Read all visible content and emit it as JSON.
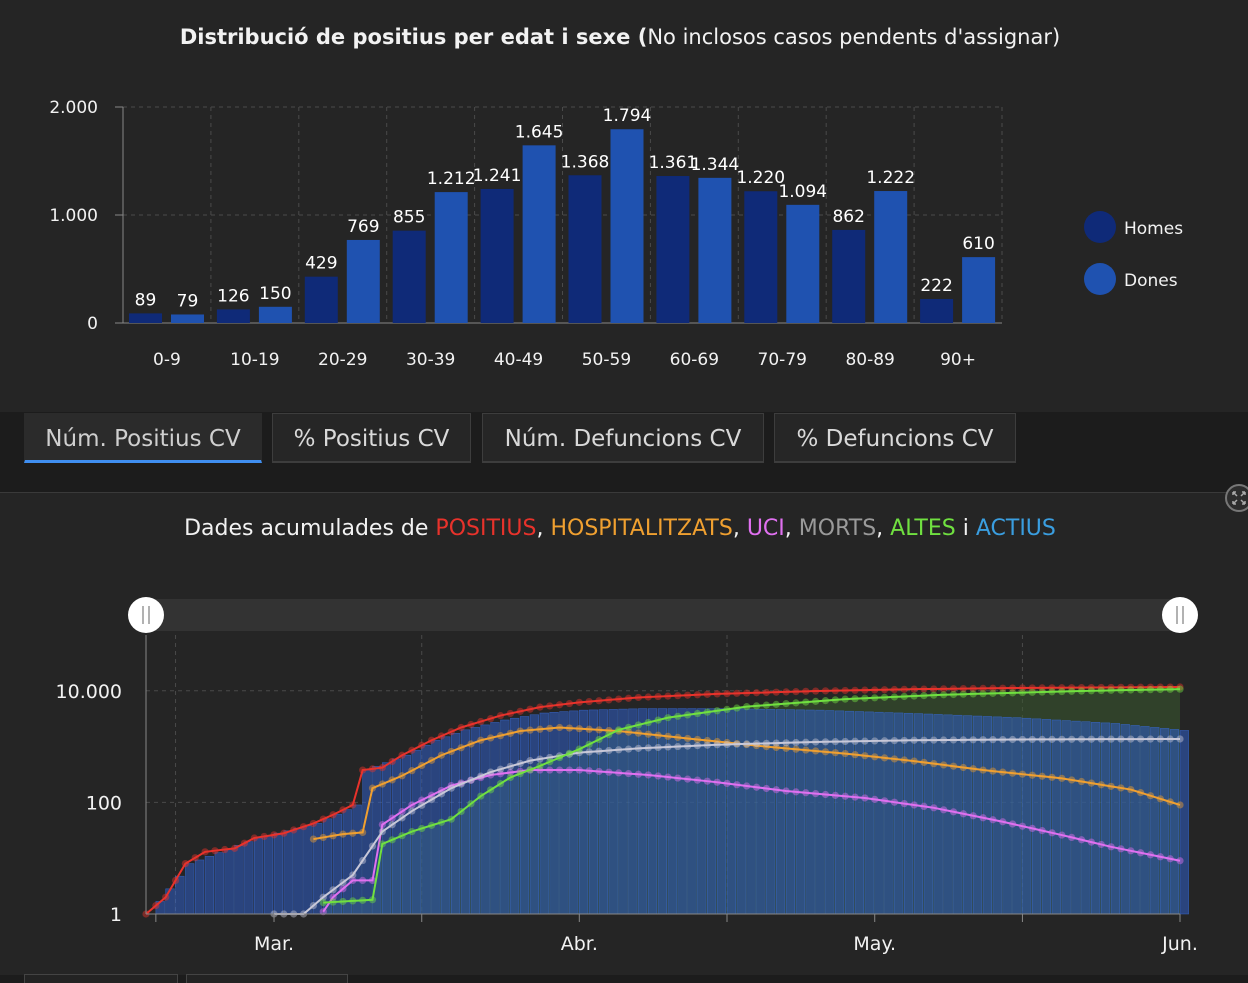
{
  "top_chart": {
    "title_bold": "Distribució de positius per edat i sexe (",
    "title_rest": "No inclosos casos pendents d'assignar)"
  },
  "tabs": [
    {
      "label": "Núm. Positius CV",
      "active": true
    },
    {
      "label": "% Positius CV",
      "active": false
    },
    {
      "label": "Núm. Defuncions CV",
      "active": false
    },
    {
      "label": "% Defuncions CV",
      "active": false
    }
  ],
  "bottom_chart": {
    "title_parts": [
      {
        "text": "Dades acumulades de ",
        "color": "#f2f2f2"
      },
      {
        "text": "POSITIUS",
        "color": "#e8322b"
      },
      {
        "text": ", ",
        "color": "#f2f2f2"
      },
      {
        "text": "HOSPITALITZATS",
        "color": "#f0a030"
      },
      {
        "text": ", ",
        "color": "#f2f2f2"
      },
      {
        "text": "UCI",
        "color": "#e070f0"
      },
      {
        "text": ", ",
        "color": "#f2f2f2"
      },
      {
        "text": "MORTS",
        "color": "#9a9a9a"
      },
      {
        "text": ", ",
        "color": "#f2f2f2"
      },
      {
        "text": "ALTES",
        "color": "#70e040"
      },
      {
        "text": " i ",
        "color": "#f2f2f2"
      },
      {
        "text": "ACTIUS",
        "color": "#3a9ee0"
      }
    ]
  },
  "chart_data": [
    {
      "type": "bar",
      "categories": [
        "0-9",
        "10-19",
        "20-29",
        "30-39",
        "40-49",
        "50-59",
        "60-69",
        "70-79",
        "80-89",
        "90+"
      ],
      "series": [
        {
          "name": "Homes",
          "color": "#0f2a78",
          "values": [
            89,
            126,
            429,
            855,
            1241,
            1368,
            1361,
            1220,
            862,
            222
          ],
          "labels": [
            "89",
            "126",
            "429",
            "855",
            "1.241",
            "1.368",
            "1.361",
            "1.220",
            "862",
            "222"
          ]
        },
        {
          "name": "Dones",
          "color": "#1f52b0",
          "values": [
            79,
            150,
            769,
            1212,
            1645,
            1794,
            1344,
            1094,
            1222,
            610
          ],
          "labels": [
            "79",
            "150",
            "769",
            "1.212",
            "1.645",
            "1.794",
            "1.344",
            "1.094",
            "1.222",
            "610"
          ]
        }
      ],
      "ylim": [
        0,
        2000
      ],
      "yticks": [
        0,
        1000,
        2000
      ],
      "ytick_labels": [
        "0",
        "1.000",
        "2.000"
      ],
      "legend_position": "right",
      "grid": true
    },
    {
      "type": "line",
      "yscale": "log",
      "ylim": [
        1,
        100000
      ],
      "yticks": [
        1,
        100,
        10000
      ],
      "ytick_labels": [
        "1",
        "100",
        "10.000"
      ],
      "x_range": [
        "2020-02-17",
        "2020-06-01"
      ],
      "xtick_labels": [
        "Mar.",
        "Abr.",
        "May.",
        "Jun."
      ],
      "xticks": [
        "2020-03-01",
        "2020-04-01",
        "2020-05-01",
        "2020-06-01"
      ],
      "grid": true,
      "series": [
        {
          "key": "positius",
          "color": "#e8322b",
          "points": [
            [
              "2020-02-17",
              1
            ],
            [
              "2020-02-19",
              2
            ],
            [
              "2020-02-21",
              8
            ],
            [
              "2020-02-23",
              13
            ],
            [
              "2020-02-26",
              15
            ],
            [
              "2020-02-28",
              23
            ],
            [
              "2020-03-02",
              28
            ],
            [
              "2020-03-05",
              42
            ],
            [
              "2020-03-07",
              60
            ],
            [
              "2020-03-09",
              90
            ],
            [
              "2020-03-10",
              380
            ],
            [
              "2020-03-12",
              420
            ],
            [
              "2020-03-14",
              700
            ],
            [
              "2020-03-17",
              1300
            ],
            [
              "2020-03-20",
              2200
            ],
            [
              "2020-03-24",
              3600
            ],
            [
              "2020-03-28",
              5100
            ],
            [
              "2020-04-01",
              6200
            ],
            [
              "2020-04-07",
              7600
            ],
            [
              "2020-04-15",
              8800
            ],
            [
              "2020-04-25",
              9900
            ],
            [
              "2020-05-05",
              10700
            ],
            [
              "2020-05-15",
              11200
            ],
            [
              "2020-05-25",
              11500
            ],
            [
              "2020-06-01",
              11700
            ]
          ]
        },
        {
          "key": "hospitalitzats",
          "color": "#f0a030",
          "points": [
            [
              "2020-03-05",
              22
            ],
            [
              "2020-03-08",
              27
            ],
            [
              "2020-03-10",
              29
            ],
            [
              "2020-03-11",
              180
            ],
            [
              "2020-03-14",
              300
            ],
            [
              "2020-03-18",
              700
            ],
            [
              "2020-03-22",
              1300
            ],
            [
              "2020-03-26",
              1900
            ],
            [
              "2020-03-30",
              2200
            ],
            [
              "2020-04-05",
              1900
            ],
            [
              "2020-04-12",
              1400
            ],
            [
              "2020-04-20",
              1000
            ],
            [
              "2020-04-28",
              750
            ],
            [
              "2020-05-05",
              550
            ],
            [
              "2020-05-12",
              380
            ],
            [
              "2020-05-20",
              270
            ],
            [
              "2020-05-27",
              170
            ],
            [
              "2020-06-01",
              90
            ]
          ]
        },
        {
          "key": "uci",
          "color": "#e070f0",
          "points": [
            [
              "2020-03-06",
              1.1
            ],
            [
              "2020-03-07",
              2
            ],
            [
              "2020-03-09",
              4
            ],
            [
              "2020-03-11",
              4
            ],
            [
              "2020-03-12",
              40
            ],
            [
              "2020-03-15",
              90
            ],
            [
              "2020-03-19",
              200
            ],
            [
              "2020-03-23",
              310
            ],
            [
              "2020-03-27",
              380
            ],
            [
              "2020-04-01",
              380
            ],
            [
              "2020-04-08",
              310
            ],
            [
              "2020-04-15",
              230
            ],
            [
              "2020-04-22",
              160
            ],
            [
              "2020-04-30",
              120
            ],
            [
              "2020-05-07",
              80
            ],
            [
              "2020-05-14",
              45
            ],
            [
              "2020-05-20",
              26
            ],
            [
              "2020-05-25",
              16
            ],
            [
              "2020-06-01",
              9
            ]
          ]
        },
        {
          "key": "morts",
          "color": "#c8c8d8",
          "points": [
            [
              "2020-03-01",
              1
            ],
            [
              "2020-03-04",
              1
            ],
            [
              "2020-03-06",
              2
            ],
            [
              "2020-03-09",
              5
            ],
            [
              "2020-03-12",
              30
            ],
            [
              "2020-03-15",
              70
            ],
            [
              "2020-03-19",
              180
            ],
            [
              "2020-03-23",
              350
            ],
            [
              "2020-03-27",
              560
            ],
            [
              "2020-04-01",
              780
            ],
            [
              "2020-04-07",
              930
            ],
            [
              "2020-04-15",
              1080
            ],
            [
              "2020-04-25",
              1210
            ],
            [
              "2020-05-05",
              1300
            ],
            [
              "2020-05-15",
              1340
            ],
            [
              "2020-05-25",
              1360
            ],
            [
              "2020-06-01",
              1370
            ]
          ]
        },
        {
          "key": "altes",
          "color": "#70e040",
          "points": [
            [
              "2020-03-06",
              1.6
            ],
            [
              "2020-03-11",
              1.8
            ],
            [
              "2020-03-12",
              18
            ],
            [
              "2020-03-15",
              30
            ],
            [
              "2020-03-19",
              50
            ],
            [
              "2020-03-22",
              130
            ],
            [
              "2020-03-25",
              280
            ],
            [
              "2020-03-28",
              450
            ],
            [
              "2020-04-01",
              900
            ],
            [
              "2020-04-05",
              2000
            ],
            [
              "2020-04-10",
              3300
            ],
            [
              "2020-04-18",
              5200
            ],
            [
              "2020-04-28",
              7100
            ],
            [
              "2020-05-08",
              8500
            ],
            [
              "2020-05-18",
              9500
            ],
            [
              "2020-05-25",
              10200
            ],
            [
              "2020-06-01",
              10700
            ]
          ]
        }
      ],
      "actius": {
        "key": "actius",
        "color": "#3a6ed8",
        "points": [
          [
            "2020-02-17",
            1
          ],
          [
            "2020-02-21",
            8
          ],
          [
            "2020-02-28",
            23
          ],
          [
            "2020-03-05",
            42
          ],
          [
            "2020-03-09",
            90
          ],
          [
            "2020-03-10",
            380
          ],
          [
            "2020-03-14",
            700
          ],
          [
            "2020-03-17",
            1300
          ],
          [
            "2020-03-20",
            2000
          ],
          [
            "2020-03-24",
            3000
          ],
          [
            "2020-03-28",
            4000
          ],
          [
            "2020-04-01",
            4500
          ],
          [
            "2020-04-07",
            4800
          ],
          [
            "2020-04-15",
            4800
          ],
          [
            "2020-04-25",
            4500
          ],
          [
            "2020-05-05",
            3900
          ],
          [
            "2020-05-15",
            3300
          ],
          [
            "2020-05-25",
            2600
          ],
          [
            "2020-06-01",
            1950
          ]
        ]
      }
    }
  ]
}
